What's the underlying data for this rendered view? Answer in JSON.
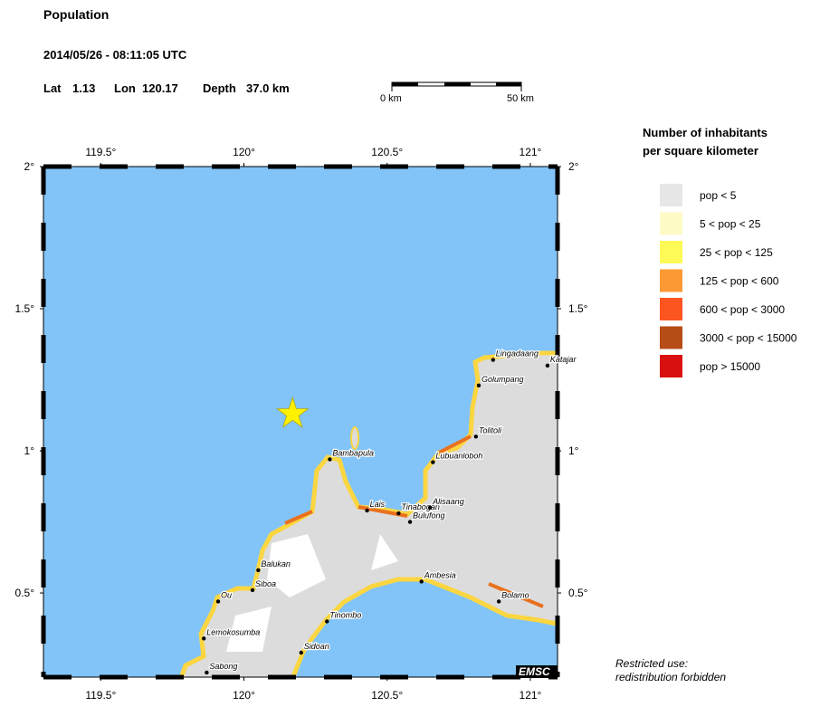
{
  "header": {
    "title": "Population",
    "datetime": "2014/05/26 - 08:11:05 UTC",
    "lat_label": "Lat",
    "lat": 1.13,
    "lon_label": "Lon",
    "lon": 120.17,
    "depth_label": "Depth",
    "depth": "37.0 km"
  },
  "scale_bar": {
    "start": "0 km",
    "end": "50 km"
  },
  "map": {
    "lonlim": [
      119.3,
      121.095
    ],
    "latlim": [
      0.204,
      2.0
    ],
    "lon_ticks": [
      {
        "value": 119.5,
        "label": "119.5°"
      },
      {
        "value": 120,
        "label": "120°"
      },
      {
        "value": 120.5,
        "label": "120.5°"
      },
      {
        "value": 121,
        "label": "121°"
      }
    ],
    "lat_ticks": [
      {
        "value": 2,
        "label": "2°"
      },
      {
        "value": 1.5,
        "label": "1.5°"
      },
      {
        "value": 1,
        "label": "1°"
      },
      {
        "value": 0.5,
        "label": "0.5°"
      }
    ],
    "cities": [
      {
        "name": "Bambapula",
        "lon": 120.3,
        "lat": 0.97
      },
      {
        "name": "Lais",
        "lon": 120.43,
        "lat": 0.79
      },
      {
        "name": "Tinabogan",
        "lon": 120.54,
        "lat": 0.78
      },
      {
        "name": "Bulufong",
        "lon": 120.58,
        "lat": 0.75
      },
      {
        "name": "Alisaang",
        "lon": 120.65,
        "lat": 0.8
      },
      {
        "name": "Lubuanloboh",
        "lon": 120.66,
        "lat": 0.96
      },
      {
        "name": "Tolitoli",
        "lon": 120.81,
        "lat": 1.05
      },
      {
        "name": "Golumpang",
        "lon": 120.82,
        "lat": 1.23
      },
      {
        "name": "Lingadaang",
        "lon": 120.87,
        "lat": 1.32
      },
      {
        "name": "Katajar",
        "lon": 121.06,
        "lat": 1.3
      },
      {
        "name": "Balukan",
        "lon": 120.05,
        "lat": 0.58
      },
      {
        "name": "Siboa",
        "lon": 120.03,
        "lat": 0.51
      },
      {
        "name": "Ou",
        "lon": 119.91,
        "lat": 0.47
      },
      {
        "name": "Lemokosumba",
        "lon": 119.86,
        "lat": 0.34
      },
      {
        "name": "Sabong",
        "lon": 119.87,
        "lat": 0.22
      },
      {
        "name": "Tinombo",
        "lon": 120.29,
        "lat": 0.4
      },
      {
        "name": "Sidoan",
        "lon": 120.2,
        "lat": 0.29
      },
      {
        "name": "Ambesia",
        "lon": 120.62,
        "lat": 0.54
      },
      {
        "name": "Bolamo",
        "lon": 120.89,
        "lat": 0.47
      }
    ],
    "credit": "EMSC"
  },
  "legend": {
    "title": [
      "Number of inhabitants",
      "per square kilometer"
    ],
    "entries": [
      {
        "label": "pop < 5",
        "color": "#e6e6e6"
      },
      {
        "label": "5 < pop < 25",
        "color": "#fdfac6"
      },
      {
        "label": "25 < pop < 125",
        "color": "#fdfa55"
      },
      {
        "label": "125 < pop < 600",
        "color": "#fd9933"
      },
      {
        "label": "600 < pop < 3000",
        "color": "#fd5520"
      },
      {
        "label": "3000 < pop < 15000",
        "color": "#b64c16"
      },
      {
        "label": "pop > 15000",
        "color": "#da1010"
      }
    ]
  },
  "footer": [
    "Restricted use:",
    "redistribution forbidden"
  ]
}
